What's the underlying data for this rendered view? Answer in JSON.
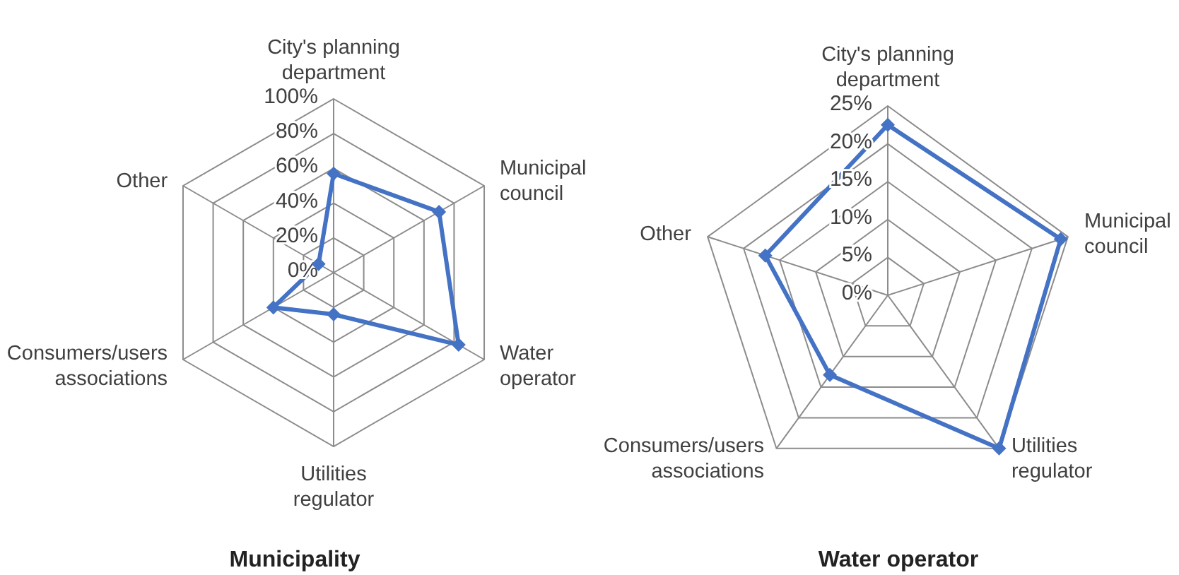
{
  "chart_data": [
    {
      "type": "radar",
      "title": "Municipality",
      "categories": [
        "City's planning department",
        "Municipal council",
        "Water operator",
        "Utilities regulator",
        "Consumers/users associations",
        "Other"
      ],
      "series": [
        {
          "color": "#4472c4",
          "values": [
            57,
            70,
            83,
            24,
            40,
            10
          ]
        }
      ],
      "ylim": [
        0,
        100
      ],
      "yticks": [
        {
          "value": 0,
          "label": "0%"
        },
        {
          "value": 20,
          "label": "20%"
        },
        {
          "value": 40,
          "label": "40%"
        },
        {
          "value": 60,
          "label": "60%"
        },
        {
          "value": 80,
          "label": "80%"
        },
        {
          "value": 100,
          "label": "100%"
        }
      ],
      "grid": true,
      "marker": "diamond",
      "legend": false
    },
    {
      "type": "radar",
      "title": "Water operator",
      "categories": [
        "City's planning department",
        "Municipal council",
        "Utilities regulator",
        "Consumers/users associations",
        "Other"
      ],
      "series": [
        {
          "color": "#4472c4",
          "values": [
            22.5,
            24,
            25,
            13,
            17
          ]
        }
      ],
      "ylim": [
        0,
        25
      ],
      "yticks": [
        {
          "value": 0,
          "label": "0%"
        },
        {
          "value": 5,
          "label": "5%"
        },
        {
          "value": 10,
          "label": "10%"
        },
        {
          "value": 15,
          "label": "15%"
        },
        {
          "value": 20,
          "label": "20%"
        },
        {
          "value": 25,
          "label": "25%"
        }
      ],
      "grid": true,
      "marker": "diamond",
      "legend": false
    }
  ]
}
